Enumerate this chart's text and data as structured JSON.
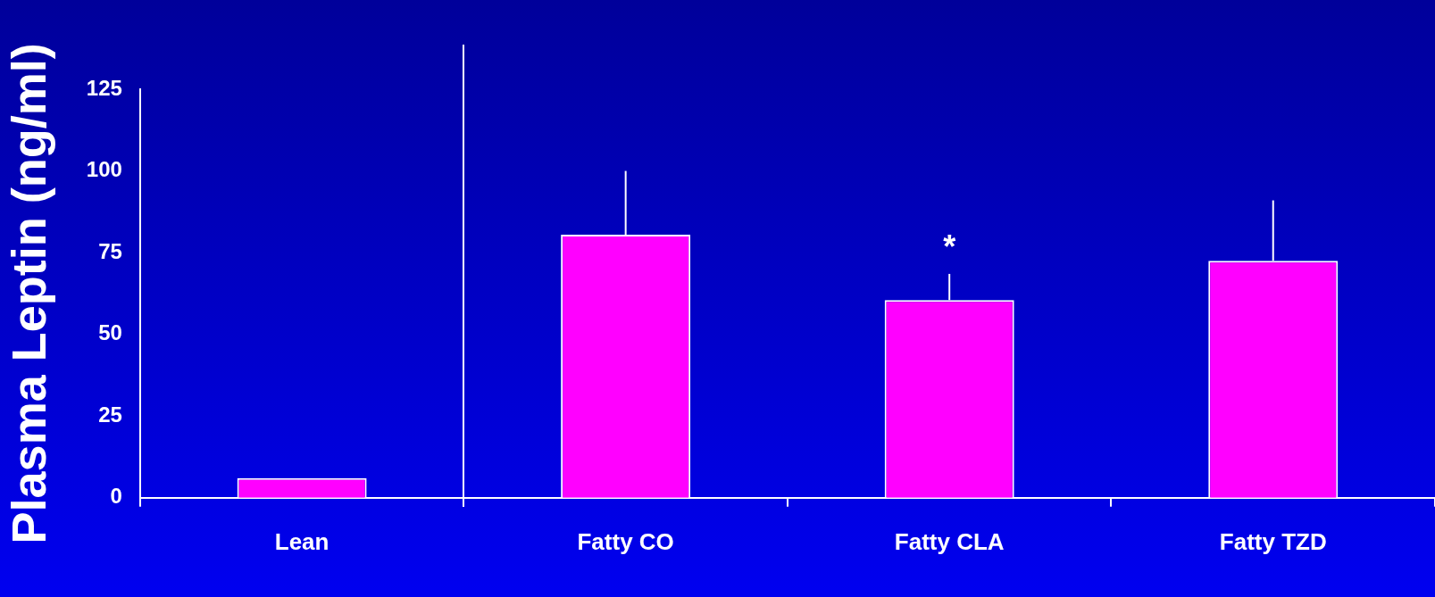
{
  "chart_data": {
    "type": "bar",
    "ylabel": "Plasma Leptin (ng/ml)",
    "categories": [
      "Lean",
      "Fatty CO",
      "Fatty CLA",
      "Fatty TZD"
    ],
    "values": [
      6,
      80.5,
      60.5,
      72.5
    ],
    "errors": [
      null,
      [
        80.5,
        100
      ],
      [
        60.5,
        68.5
      ],
      [
        72.5,
        91
      ]
    ],
    "color": "#ff00ff",
    "ylim": [
      0,
      125
    ],
    "yticks": [
      0,
      25,
      50,
      75,
      100,
      125
    ],
    "grid": false,
    "legend": false,
    "annotations": [
      {
        "text": "*",
        "x": "Fatty CLA",
        "y": 68.5
      }
    ]
  }
}
